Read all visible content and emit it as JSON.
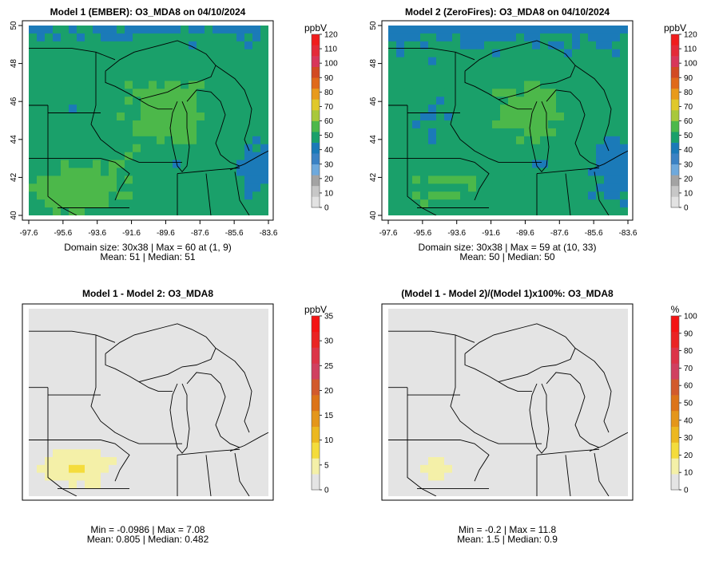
{
  "panels": [
    {
      "id": "model1",
      "title": "Model 1 (EMBER): O3_MDA8 on 04/10/2024",
      "field": "model1",
      "show_axes": true,
      "stats": [
        "Domain size: 30x38 | Max = 60 at (1, 9)",
        "Mean: 51 |  Median: 51"
      ],
      "colorbar": {
        "unit": "ppbV",
        "ticks": [
          "0",
          "10",
          "20",
          "30",
          "40",
          "50",
          "60",
          "70",
          "80",
          "90",
          "100",
          "110",
          "120"
        ],
        "colors": [
          "#e2e2e2",
          "#c7c7c7",
          "#a3a3a3",
          "#6ea9dc",
          "#3b82c4",
          "#1b7ab8",
          "#1aa06a",
          "#4cb84a",
          "#a8c83a",
          "#e0c82a",
          "#e89a1c",
          "#e06a1a",
          "#d24a22",
          "#d8365a",
          "#e42a38",
          "#f01c1c"
        ]
      },
      "axes": {
        "lon_ticks": [
          "-97.6",
          "-95.6",
          "-93.6",
          "-91.6",
          "-89.6",
          "-87.6",
          "-85.6",
          "-83.6"
        ],
        "lat_ticks": [
          "40",
          "42",
          "44",
          "46",
          "48",
          "50"
        ]
      }
    },
    {
      "id": "model2",
      "title": "Model 2 (ZeroFires): O3_MDA8 on 04/10/2024",
      "field": "model2",
      "show_axes": true,
      "stats": [
        "Domain size: 30x38 | Max = 59 at (10, 33)",
        "Mean: 50 |  Median: 50"
      ],
      "colorbar": {
        "unit": "ppbV",
        "ticks": [
          "0",
          "10",
          "20",
          "30",
          "40",
          "50",
          "60",
          "70",
          "80",
          "90",
          "100",
          "110",
          "120"
        ],
        "colors": [
          "#e2e2e2",
          "#c7c7c7",
          "#a3a3a3",
          "#6ea9dc",
          "#3b82c4",
          "#1b7ab8",
          "#1aa06a",
          "#4cb84a",
          "#a8c83a",
          "#e0c82a",
          "#e89a1c",
          "#e06a1a",
          "#d24a22",
          "#d8365a",
          "#e42a38",
          "#f01c1c"
        ]
      },
      "axes": {
        "lon_ticks": [
          "-97.6",
          "-95.6",
          "-93.6",
          "-91.6",
          "-89.6",
          "-87.6",
          "-85.6",
          "-83.6"
        ],
        "lat_ticks": [
          "40",
          "42",
          "44",
          "46",
          "48",
          "50"
        ]
      }
    },
    {
      "id": "diff",
      "title": "Model 1 - Model 2: O3_MDA8",
      "field": "diff",
      "show_axes": false,
      "stats": [
        "Min = -0.0986 | Max = 7.08",
        "Mean: 0.805 |  Median: 0.482"
      ],
      "colorbar": {
        "unit": "ppbV",
        "ticks": [
          "0",
          "5",
          "10",
          "15",
          "20",
          "25",
          "30",
          "35"
        ],
        "colors": [
          "#e4e4e4",
          "#f4f0a8",
          "#f4dc3c",
          "#ecb820",
          "#e4961a",
          "#dc7418",
          "#d25a2c",
          "#d04060",
          "#dc3448",
          "#ea2424",
          "#f41414"
        ]
      }
    },
    {
      "id": "pct",
      "title": "(Model 1 - Model 2)/(Model 1)x100%: O3_MDA8",
      "field": "pct",
      "show_axes": false,
      "stats": [
        "Min = -0.2 | Max = 11.8",
        "Mean: 1.5 |  Median: 0.9"
      ],
      "colorbar": {
        "unit": "%",
        "ticks": [
          "0",
          "10",
          "20",
          "30",
          "40",
          "50",
          "60",
          "70",
          "80",
          "90",
          "100"
        ],
        "colors": [
          "#e4e4e4",
          "#f4f0a8",
          "#f4dc3c",
          "#ecb820",
          "#e4961a",
          "#dc7418",
          "#d25a2c",
          "#d04060",
          "#dc3448",
          "#ea2424",
          "#f41414"
        ]
      }
    }
  ]
}
